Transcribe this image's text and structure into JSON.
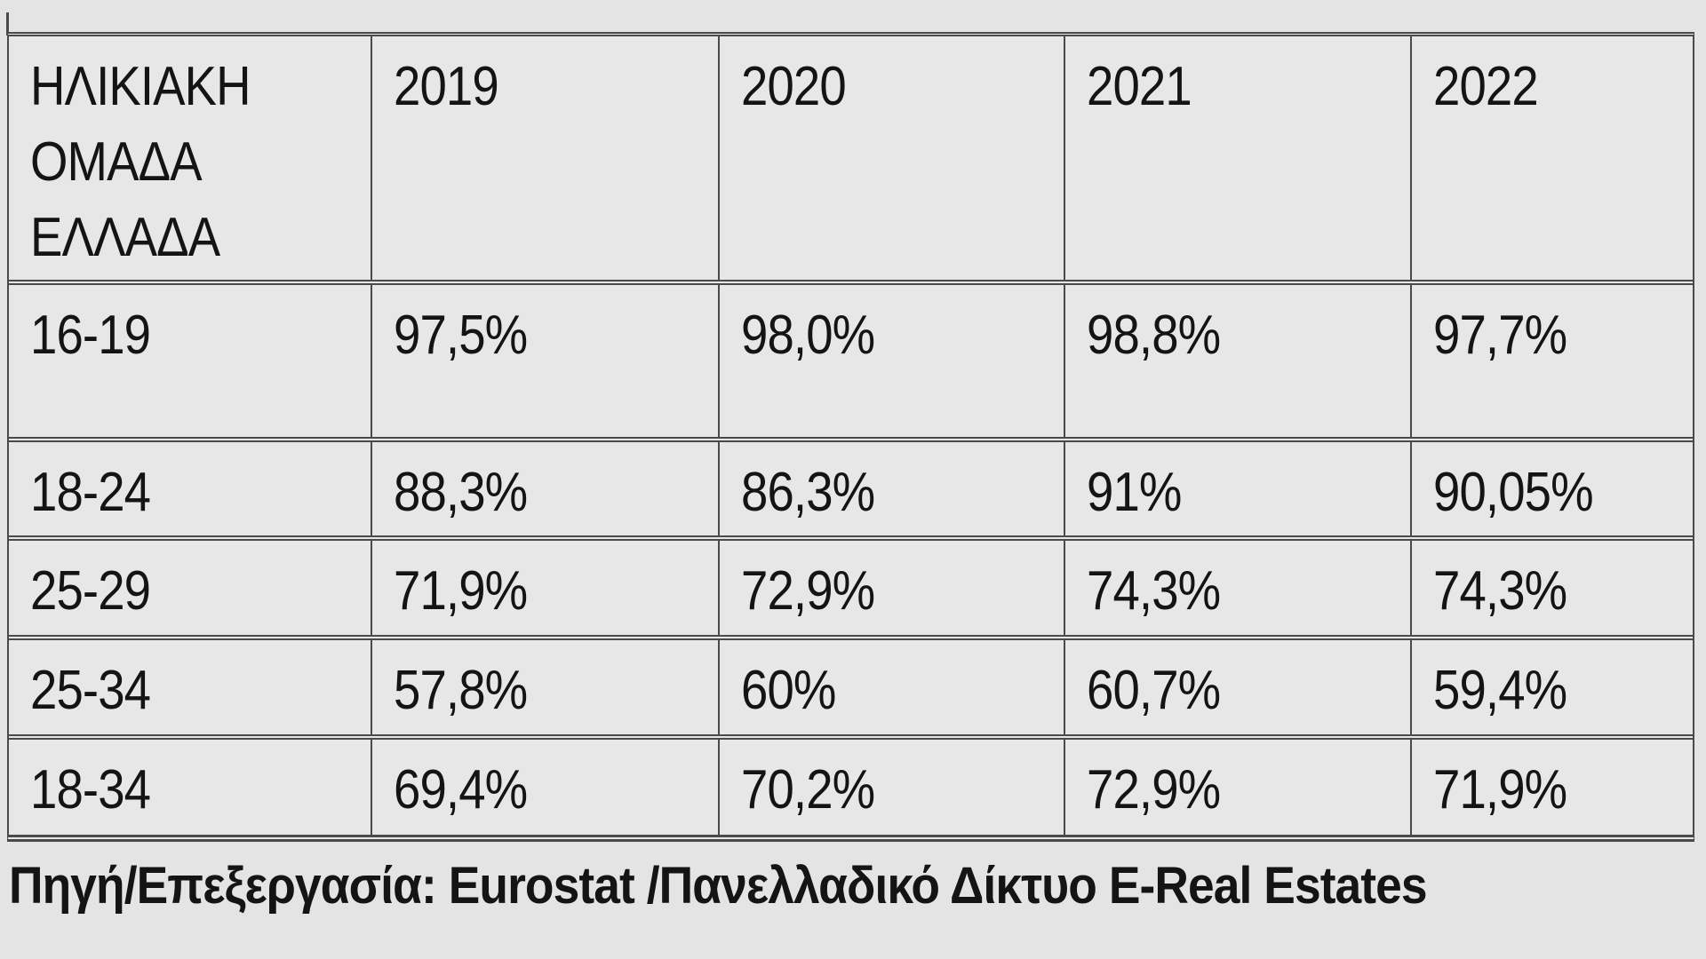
{
  "table": {
    "header": {
      "age_label_lines": [
        "ΗΛΙΚΙΑΚΗ",
        "ΟΜΑΔΑ",
        "ΕΛΛΑΔΑ"
      ],
      "years": [
        "2019",
        "2020",
        "2021",
        "2022"
      ]
    },
    "rows": [
      {
        "age_group": "16-19",
        "values": [
          "97,5%",
          "98,0%",
          "98,8%",
          "97,7%"
        ]
      },
      {
        "age_group": "18-24",
        "values": [
          "88,3%",
          "86,3%",
          "91%",
          "90,05%"
        ]
      },
      {
        "age_group": "25-29",
        "values": [
          "71,9%",
          "72,9%",
          "74,3%",
          "74,3%"
        ]
      },
      {
        "age_group": "25-34",
        "values": [
          "57,8%",
          "60%",
          "60,7%",
          "59,4%"
        ]
      },
      {
        "age_group": "18-34",
        "values": [
          "69,4%",
          "70,2%",
          "72,9%",
          "71,9%"
        ]
      }
    ],
    "source_note": "Πηγή/Επεξεργασία: Eurostat /Πανελλαδικό Δίκτυο E-Real Estates"
  },
  "chart_data": {
    "type": "table",
    "title": "",
    "columns": [
      "ΗΛΙΚΙΑΚΗ ΟΜΑΔΑ ΕΛΛΑΔΑ",
      "2019",
      "2020",
      "2021",
      "2022"
    ],
    "rows": [
      [
        "16-19",
        "97,5%",
        "98,0%",
        "98,8%",
        "97,7%"
      ],
      [
        "18-24",
        "88,3%",
        "86,3%",
        "91%",
        "90,05%"
      ],
      [
        "25-29",
        "71,9%",
        "72,9%",
        "74,3%",
        "74,3%"
      ],
      [
        "25-34",
        "57,8%",
        "60%",
        "60,7%",
        "59,4%"
      ],
      [
        "18-34",
        "69,4%",
        "70,2%",
        "72,9%",
        "71,9%"
      ]
    ],
    "values_numeric_percent": {
      "16-19": [
        97.5,
        98.0,
        98.8,
        97.7
      ],
      "18-24": [
        88.3,
        86.3,
        91.0,
        90.05
      ],
      "25-29": [
        71.9,
        72.9,
        74.3,
        74.3
      ],
      "25-34": [
        57.8,
        60.0,
        60.7,
        59.4
      ],
      "18-34": [
        69.4,
        70.2,
        72.9,
        71.9
      ]
    },
    "source": "Πηγή/Επεξεργασία: Eurostat /Πανελλαδικό Δίκτυο E-Real Estates"
  },
  "colors": {
    "background": "#e4e4e4",
    "cell_background": "#e7e7e7",
    "border": "#4a4a4a",
    "text": "#141414"
  }
}
